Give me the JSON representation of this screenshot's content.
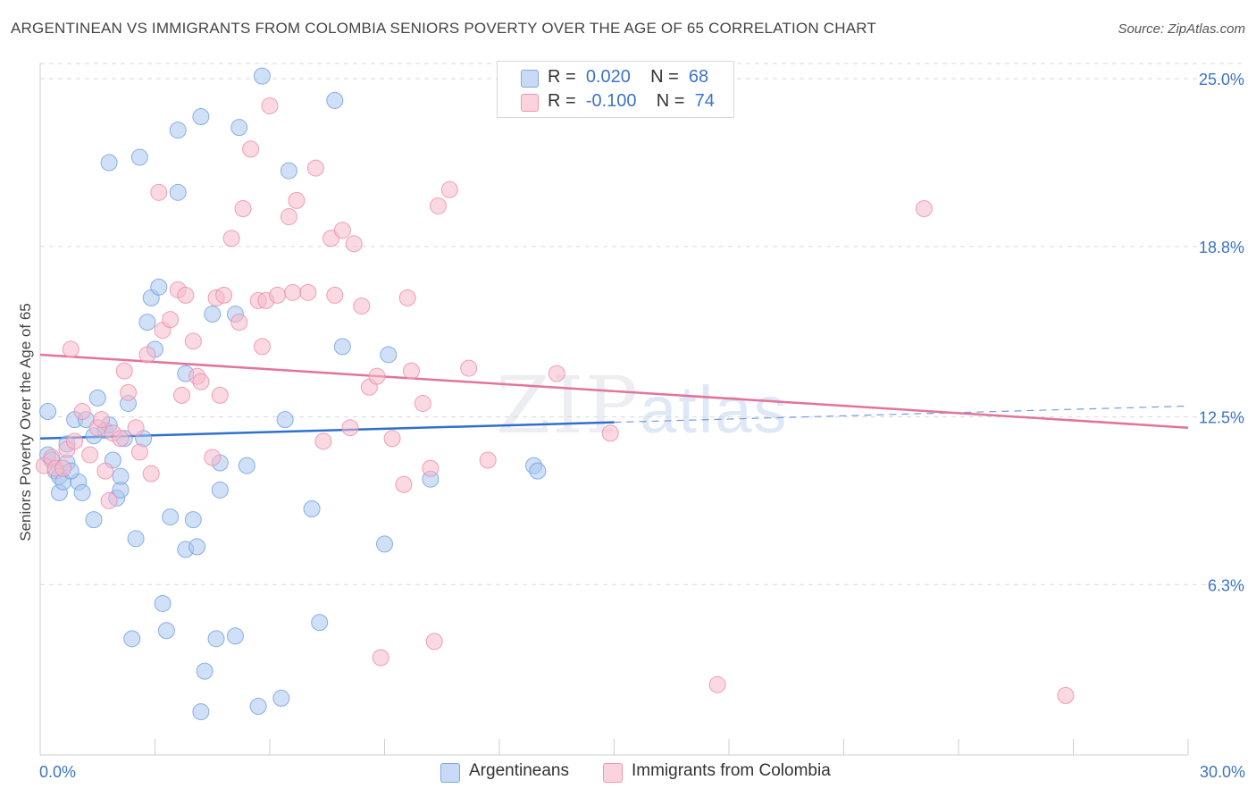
{
  "header": {
    "title": "ARGENTINEAN VS IMMIGRANTS FROM COLOMBIA SENIORS POVERTY OVER THE AGE OF 65 CORRELATION CHART",
    "source": "Source: ZipAtlas.com"
  },
  "watermark": {
    "zip": "ZIP",
    "atlas": "atlas"
  },
  "legend": {
    "rows": [
      {
        "r_label": "R =",
        "r_value": "0.020",
        "n_label": "N =",
        "n_value": "68",
        "color": "#a9c6ee"
      },
      {
        "r_label": "R =",
        "r_value": "-0.100",
        "n_label": "N =",
        "n_value": "74",
        "color": "#f6b9cc"
      }
    ]
  },
  "bottom_legend": [
    {
      "label": "Argentineans",
      "color": "#a9c6ee"
    },
    {
      "label": "Immigrants from Colombia",
      "color": "#f6b9cc"
    }
  ],
  "chart_data": {
    "type": "scatter",
    "title": "ARGENTINEAN VS IMMIGRANTS FROM COLOMBIA SENIORS POVERTY OVER THE AGE OF 65 CORRELATION CHART",
    "xlabel": "",
    "ylabel": "Seniors Poverty Over the Age of 65",
    "xlim": [
      0,
      30
    ],
    "ylim": [
      0,
      25.6
    ],
    "x_tick_labels": [
      "0.0%",
      "30.0%"
    ],
    "y_ticks": [
      6.3,
      12.5,
      18.8,
      25.0
    ],
    "y_tick_labels": [
      "6.3%",
      "12.5%",
      "18.8%",
      "25.0%"
    ],
    "grid": "horizontal dashed",
    "series": [
      {
        "name": "Argentineans",
        "color": "#6f9fe0",
        "fill": "#a9c6ee",
        "points": [
          [
            0.2,
            12.7
          ],
          [
            0.2,
            11.1
          ],
          [
            0.3,
            10.9
          ],
          [
            0.4,
            10.5
          ],
          [
            0.5,
            9.7
          ],
          [
            0.5,
            10.3
          ],
          [
            0.6,
            10.1
          ],
          [
            0.7,
            11.5
          ],
          [
            0.7,
            10.8
          ],
          [
            0.9,
            12.4
          ],
          [
            1.0,
            10.1
          ],
          [
            1.1,
            9.7
          ],
          [
            1.2,
            12.4
          ],
          [
            1.4,
            8.7
          ],
          [
            1.5,
            13.2
          ],
          [
            1.7,
            12.0
          ],
          [
            1.8,
            12.2
          ],
          [
            1.9,
            10.9
          ],
          [
            2.0,
            9.5
          ],
          [
            2.1,
            9.8
          ],
          [
            2.1,
            10.3
          ],
          [
            2.2,
            11.7
          ],
          [
            2.3,
            13.0
          ],
          [
            2.5,
            8.0
          ],
          [
            2.7,
            11.7
          ],
          [
            2.8,
            16.0
          ],
          [
            2.9,
            16.9
          ],
          [
            3.0,
            15.0
          ],
          [
            3.1,
            17.3
          ],
          [
            3.2,
            5.6
          ],
          [
            3.3,
            4.6
          ],
          [
            3.4,
            8.8
          ],
          [
            3.6,
            20.8
          ],
          [
            3.6,
            23.1
          ],
          [
            3.8,
            14.1
          ],
          [
            3.8,
            7.6
          ],
          [
            4.0,
            8.7
          ],
          [
            4.1,
            7.7
          ],
          [
            4.2,
            1.6
          ],
          [
            4.2,
            23.6
          ],
          [
            4.3,
            3.1
          ],
          [
            4.5,
            16.3
          ],
          [
            4.6,
            4.3
          ],
          [
            4.7,
            9.8
          ],
          [
            4.7,
            10.8
          ],
          [
            5.1,
            16.3
          ],
          [
            5.1,
            4.4
          ],
          [
            5.2,
            23.2
          ],
          [
            5.4,
            10.7
          ],
          [
            5.7,
            1.8
          ],
          [
            5.8,
            25.1
          ],
          [
            6.3,
            2.1
          ],
          [
            6.4,
            12.4
          ],
          [
            6.5,
            21.6
          ],
          [
            7.1,
            9.1
          ],
          [
            7.3,
            4.9
          ],
          [
            7.7,
            24.2
          ],
          [
            7.9,
            15.1
          ],
          [
            9.0,
            7.8
          ],
          [
            9.1,
            14.8
          ],
          [
            10.2,
            10.2
          ],
          [
            12.9,
            10.7
          ],
          [
            13.0,
            10.5
          ],
          [
            1.8,
            21.9
          ],
          [
            2.6,
            22.1
          ],
          [
            2.4,
            4.3
          ],
          [
            1.4,
            11.8
          ],
          [
            0.8,
            10.5
          ]
        ]
      },
      {
        "name": "Immigrants from Colombia",
        "color": "#ee8aa9",
        "fill": "#f6b9cc",
        "points": [
          [
            0.1,
            10.7
          ],
          [
            0.3,
            11.0
          ],
          [
            0.4,
            10.6
          ],
          [
            0.6,
            10.6
          ],
          [
            0.7,
            11.3
          ],
          [
            0.8,
            15.0
          ],
          [
            0.9,
            11.6
          ],
          [
            1.1,
            12.7
          ],
          [
            1.3,
            11.1
          ],
          [
            1.5,
            12.1
          ],
          [
            1.7,
            10.5
          ],
          [
            1.8,
            9.4
          ],
          [
            1.9,
            11.9
          ],
          [
            2.1,
            11.7
          ],
          [
            2.2,
            14.2
          ],
          [
            2.3,
            13.4
          ],
          [
            2.5,
            12.1
          ],
          [
            2.6,
            11.2
          ],
          [
            2.8,
            14.8
          ],
          [
            2.9,
            10.4
          ],
          [
            3.1,
            20.8
          ],
          [
            3.2,
            15.7
          ],
          [
            3.4,
            16.1
          ],
          [
            3.6,
            17.2
          ],
          [
            3.7,
            13.3
          ],
          [
            3.8,
            17.0
          ],
          [
            4.0,
            15.3
          ],
          [
            4.1,
            14.0
          ],
          [
            4.2,
            13.8
          ],
          [
            4.5,
            11.0
          ],
          [
            4.6,
            16.9
          ],
          [
            4.7,
            13.3
          ],
          [
            4.8,
            17.0
          ],
          [
            5.0,
            19.1
          ],
          [
            5.2,
            16.0
          ],
          [
            5.3,
            20.2
          ],
          [
            5.5,
            22.4
          ],
          [
            5.7,
            16.8
          ],
          [
            5.8,
            15.1
          ],
          [
            5.9,
            16.8
          ],
          [
            6.0,
            24.0
          ],
          [
            6.2,
            17.0
          ],
          [
            6.5,
            19.9
          ],
          [
            6.6,
            17.1
          ],
          [
            6.7,
            20.5
          ],
          [
            7.0,
            17.1
          ],
          [
            7.2,
            21.7
          ],
          [
            7.4,
            11.6
          ],
          [
            7.6,
            19.1
          ],
          [
            7.7,
            17.0
          ],
          [
            7.9,
            19.4
          ],
          [
            8.1,
            12.1
          ],
          [
            8.2,
            18.9
          ],
          [
            8.4,
            16.6
          ],
          [
            8.6,
            13.6
          ],
          [
            8.8,
            14.0
          ],
          [
            8.9,
            3.6
          ],
          [
            9.2,
            11.7
          ],
          [
            9.5,
            10.0
          ],
          [
            9.6,
            16.9
          ],
          [
            9.7,
            14.2
          ],
          [
            10.0,
            13.0
          ],
          [
            10.2,
            10.6
          ],
          [
            10.4,
            20.3
          ],
          [
            10.7,
            20.9
          ],
          [
            11.2,
            14.3
          ],
          [
            11.7,
            10.9
          ],
          [
            13.5,
            14.1
          ],
          [
            14.9,
            11.9
          ],
          [
            17.7,
            2.6
          ],
          [
            23.1,
            20.2
          ],
          [
            26.8,
            2.2
          ],
          [
            10.3,
            4.2
          ],
          [
            1.6,
            12.4
          ]
        ]
      }
    ],
    "trend_lines": [
      {
        "series": "Argentineans",
        "x": [
          0,
          15
        ],
        "y": [
          11.7,
          12.3
        ],
        "dashed_extension_to": [
          30,
          12.9
        ]
      },
      {
        "series": "Immigrants from Colombia",
        "x": [
          0,
          30
        ],
        "y": [
          14.8,
          12.1
        ]
      }
    ]
  }
}
